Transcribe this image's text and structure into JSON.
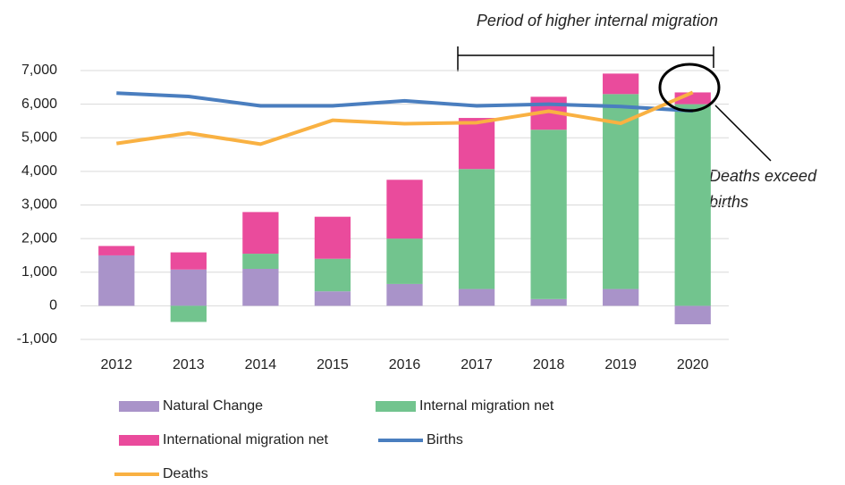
{
  "chart_data": {
    "type": "bar",
    "categories": [
      "2012",
      "2013",
      "2014",
      "2015",
      "2016",
      "2017",
      "2018",
      "2019",
      "2020"
    ],
    "series": [
      {
        "name": "Natural Change",
        "type": "bar",
        "color": "#a993c9",
        "values": [
          1500,
          1080,
          1100,
          430,
          650,
          500,
          200,
          500,
          -550
        ]
      },
      {
        "name": "Internal migration net",
        "type": "bar",
        "color": "#72c48e",
        "values": [
          0,
          -480,
          450,
          970,
          1350,
          3570,
          5040,
          5800,
          6000
        ]
      },
      {
        "name": "International migration net",
        "type": "bar",
        "color": "#ea4b9c",
        "values": [
          280,
          510,
          1240,
          1250,
          1750,
          1520,
          980,
          610,
          350
        ]
      },
      {
        "name": "Births",
        "type": "line",
        "color": "#4a7ebf",
        "values": [
          6330,
          6230,
          5950,
          5950,
          6100,
          5950,
          6000,
          5930,
          5800
        ]
      },
      {
        "name": "Deaths",
        "type": "line",
        "color": "#f9b142",
        "values": [
          4830,
          5140,
          4810,
          5520,
          5420,
          5450,
          5790,
          5430,
          6350
        ]
      }
    ],
    "ylim": [
      -1000,
      7000
    ],
    "yticks": [
      {
        "value": -1000,
        "label": "-1,000"
      },
      0,
      {
        "value": 1000,
        "label": "1,000"
      },
      {
        "value": 2000,
        "label": "2,000"
      },
      {
        "value": 3000,
        "label": "3,000"
      },
      {
        "value": 4000,
        "label": "4,000"
      },
      {
        "value": 5000,
        "label": "5,000"
      },
      {
        "value": 6000,
        "label": "6,000"
      },
      {
        "value": 7000,
        "label": "7,000"
      }
    ],
    "grid": true,
    "legend": "bottom",
    "annotations": [
      "Period of higher internal migration",
      "Deaths exceed",
      "births"
    ]
  }
}
